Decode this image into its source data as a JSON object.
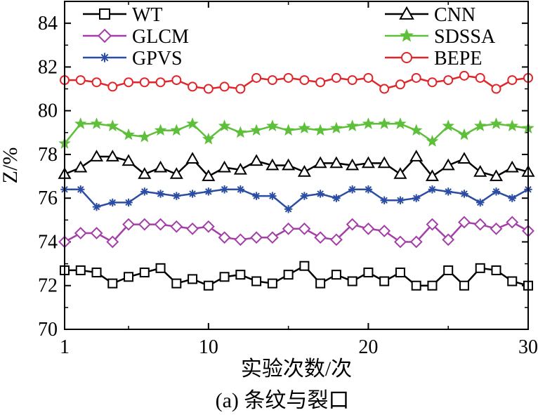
{
  "chart_data": {
    "type": "line",
    "xlabel": "实验次数/次",
    "ylabel": "Z/%",
    "caption": "(a) 条纹与裂口",
    "xlim": [
      1,
      30
    ],
    "ylim": [
      70,
      85
    ],
    "x_ticks": [
      "1",
      "10",
      "20",
      "30"
    ],
    "y_ticks": [
      "70",
      "72",
      "74",
      "76",
      "78",
      "80",
      "82",
      "84"
    ],
    "legend_placement": "top, two columns",
    "x": [
      1,
      2,
      3,
      4,
      5,
      6,
      7,
      8,
      9,
      10,
      11,
      12,
      13,
      14,
      15,
      16,
      17,
      18,
      19,
      20,
      21,
      22,
      23,
      24,
      25,
      26,
      27,
      28,
      29,
      30
    ],
    "series": [
      {
        "name": "WT",
        "color": "#000000",
        "marker": "square",
        "values": [
          72.7,
          72.7,
          72.6,
          72.1,
          72.4,
          72.6,
          72.8,
          72.1,
          72.3,
          72.0,
          72.4,
          72.5,
          72.2,
          72.1,
          72.5,
          72.9,
          72.1,
          72.5,
          72.2,
          72.6,
          72.2,
          72.6,
          72.0,
          72.0,
          72.7,
          72.0,
          72.8,
          72.7,
          72.2,
          72.0
        ]
      },
      {
        "name": "GLCM",
        "color": "#a43ea8",
        "marker": "diamond",
        "values": [
          74.0,
          74.4,
          74.4,
          74.0,
          74.8,
          74.8,
          74.8,
          74.7,
          74.6,
          74.7,
          74.2,
          74.1,
          74.2,
          74.2,
          74.6,
          74.6,
          74.2,
          74.1,
          74.8,
          74.6,
          74.5,
          74.0,
          74.0,
          74.8,
          74.1,
          74.9,
          74.8,
          74.6,
          74.9,
          74.5
        ]
      },
      {
        "name": "GPVS",
        "color": "#2b4da3",
        "marker": "asterisk",
        "values": [
          76.4,
          76.4,
          75.6,
          75.8,
          75.8,
          76.3,
          76.2,
          76.1,
          76.2,
          76.3,
          76.4,
          76.4,
          76.1,
          76.1,
          75.5,
          76.1,
          76.2,
          76.0,
          76.4,
          76.4,
          75.9,
          75.9,
          76.0,
          76.4,
          76.3,
          76.2,
          75.8,
          76.3,
          76.0,
          76.4
        ]
      },
      {
        "name": "CNN",
        "color": "#000000",
        "marker": "triangle",
        "values": [
          77.1,
          77.4,
          77.9,
          77.9,
          77.7,
          77.1,
          77.4,
          77.1,
          77.8,
          77.0,
          77.4,
          77.3,
          77.7,
          77.5,
          77.5,
          77.2,
          77.6,
          77.6,
          77.5,
          77.6,
          77.6,
          77.1,
          77.9,
          77.0,
          77.5,
          77.8,
          77.2,
          77.0,
          77.4,
          77.2
        ]
      },
      {
        "name": "SDSSA",
        "color": "#5dbf3a",
        "marker": "star",
        "values": [
          78.5,
          79.4,
          79.4,
          79.3,
          78.9,
          78.8,
          79.1,
          79.1,
          79.4,
          78.7,
          79.3,
          79.0,
          79.1,
          79.3,
          79.1,
          79.2,
          79.1,
          79.2,
          79.3,
          79.4,
          79.4,
          79.4,
          79.1,
          78.6,
          79.3,
          78.9,
          79.3,
          79.4,
          79.3,
          79.2
        ]
      },
      {
        "name": "BEPE",
        "color": "#e0262a",
        "marker": "circle",
        "values": [
          81.4,
          81.4,
          81.3,
          81.1,
          81.3,
          81.3,
          81.3,
          81.4,
          81.1,
          81.0,
          81.1,
          81.0,
          81.5,
          81.4,
          81.5,
          81.4,
          81.3,
          81.5,
          81.4,
          81.5,
          81.0,
          81.2,
          81.5,
          81.3,
          81.4,
          81.6,
          81.5,
          81.0,
          81.4,
          81.5
        ]
      }
    ]
  }
}
